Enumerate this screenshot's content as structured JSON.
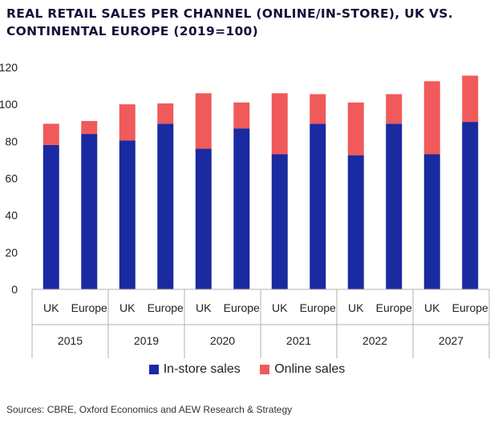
{
  "title": "REAL RETAIL SALES PER CHANNEL (ONLINE/IN-STORE), UK VS. CONTINENTAL EUROPE (2019=100)",
  "source": "Sources: CBRE, Oxford Economics and AEW Research & Strategy",
  "colors": {
    "in_store": "#1a2aa0",
    "online": "#f05a5a",
    "axis": "#b0b0b0"
  },
  "chart_data": {
    "type": "bar",
    "stacked": true,
    "groups": [
      "2015",
      "2019",
      "2020",
      "2021",
      "2022",
      "2027"
    ],
    "categories": [
      "UK",
      "Europe",
      "UK",
      "Europe",
      "UK",
      "Europe",
      "UK",
      "Europe",
      "UK",
      "Europe",
      "UK",
      "Europe"
    ],
    "series": [
      {
        "name": "In-store sales",
        "values": [
          78,
          84,
          80.5,
          89.5,
          76,
          87,
          73,
          89.5,
          72.5,
          89.5,
          73,
          90.5
        ]
      },
      {
        "name": "Online sales",
        "values": [
          11.5,
          7,
          19.5,
          11,
          30,
          14,
          33,
          16,
          28.5,
          16,
          39.5,
          25
        ]
      }
    ],
    "yticks": [
      0,
      20,
      40,
      60,
      80,
      100,
      120
    ],
    "ylim": [
      0,
      120
    ],
    "legend_position": "bottom"
  }
}
